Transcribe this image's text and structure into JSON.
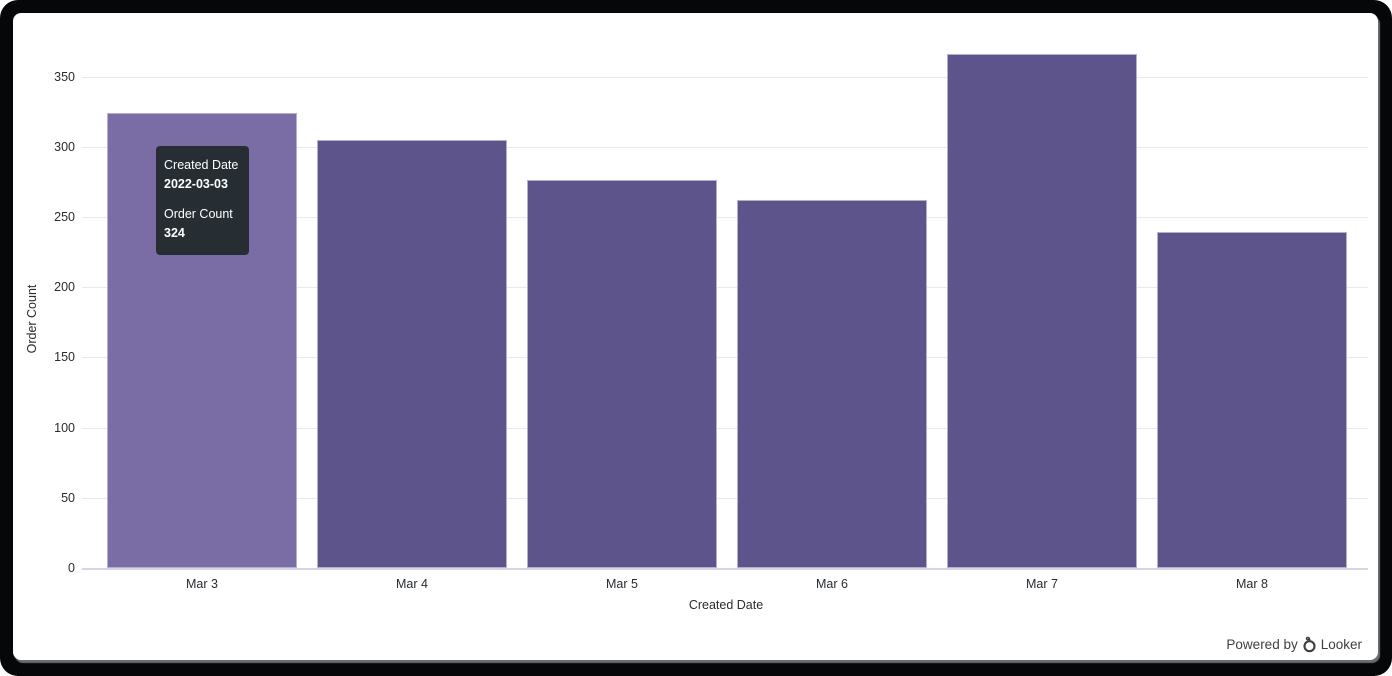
{
  "chart_data": {
    "type": "bar",
    "title": "",
    "categories": [
      "Mar 3",
      "Mar 4",
      "Mar 5",
      "Mar 6",
      "Mar 7",
      "Mar 8"
    ],
    "values": [
      324,
      305,
      276,
      262,
      366,
      239
    ],
    "xlabel": "Created Date",
    "ylabel": "Order Count",
    "ylim": [
      0,
      370
    ],
    "yticks": [
      0,
      50,
      100,
      150,
      200,
      250,
      300,
      350
    ],
    "grid": "horizontal",
    "legend": "none",
    "hovered_index": 0,
    "colors": {
      "bar": "#5e548c",
      "bar_hover": "#7a6ca4",
      "bar_border": "#b6aecd",
      "gridline": "#e9e9e9",
      "axis_line": "#d7d4e7",
      "tick_text": "#282c30"
    }
  },
  "tooltip": {
    "field1_label": "Created Date",
    "field1_value": "2022-03-03",
    "field2_label": "Order Count",
    "field2_value": "324",
    "bg": "#262d33",
    "text_color": "#ffffff"
  },
  "footer": {
    "powered_by": "Powered by",
    "brand": "Looker"
  }
}
